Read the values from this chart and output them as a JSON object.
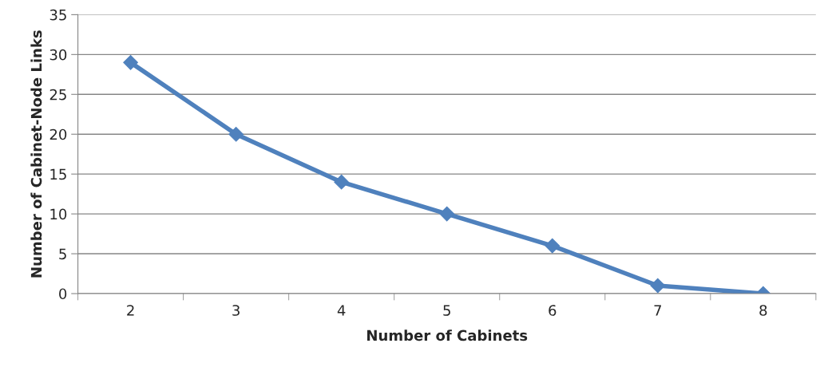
{
  "chart_data": {
    "type": "line",
    "xlabel": "Number of Cabinets",
    "ylabel": "Number of Cabinet-Node Links",
    "categories": [
      "2",
      "3",
      "4",
      "5",
      "6",
      "7",
      "8"
    ],
    "series": [
      {
        "color": "#4f81bd",
        "values": [
          29,
          20,
          14,
          10,
          6,
          1,
          0
        ]
      }
    ],
    "ylim": [
      0,
      35
    ],
    "yticks": [
      0,
      5,
      10,
      15,
      20,
      25,
      30,
      35
    ],
    "grid": "y",
    "legend": false,
    "marker": "diamond",
    "line_style": "solid"
  }
}
